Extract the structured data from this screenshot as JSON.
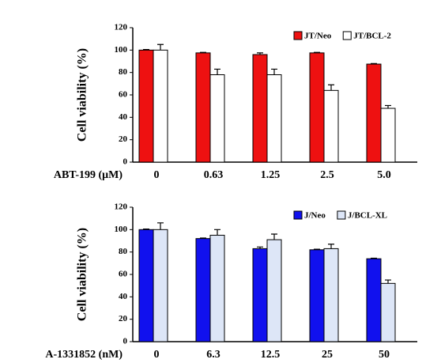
{
  "chart_data": [
    {
      "type": "bar",
      "ylabel": "Cell viability (%)",
      "xlabel": "ABT-199 (μM)",
      "categories": [
        "0",
        "0.63",
        "1.25",
        "2.5",
        "5.0"
      ],
      "series": [
        {
          "name": "JT/Neo",
          "color": "#ee1111",
          "values": [
            100,
            97.5,
            96,
            97.5,
            87.5
          ],
          "errors": [
            0.5,
            0.5,
            1.5,
            0.5,
            0.5
          ]
        },
        {
          "name": "JT/BCL-2",
          "color": "#ffffff",
          "values": [
            100,
            78,
            78,
            64,
            48
          ],
          "errors": [
            5,
            5,
            5,
            5,
            2.5
          ]
        }
      ],
      "ylim": [
        0,
        120
      ],
      "yticks": [
        0,
        20,
        40,
        60,
        80,
        100,
        120
      ],
      "legend": "upper right"
    },
    {
      "type": "bar",
      "ylabel": "Cell viability (%)",
      "xlabel": "A-1331852 (nM)",
      "categories": [
        "0",
        "6.3",
        "12.5",
        "25",
        "50"
      ],
      "series": [
        {
          "name": "J/Neo",
          "color": "#1111ee",
          "values": [
            100,
            92,
            83,
            82,
            74
          ],
          "errors": [
            0.5,
            0.5,
            1.5,
            0.5,
            0.5
          ]
        },
        {
          "name": "J/BCL-XL",
          "color": "#dde6f7",
          "values": [
            100,
            95,
            91,
            83,
            52
          ],
          "errors": [
            6,
            5,
            5,
            4,
            3
          ]
        }
      ],
      "ylim": [
        0,
        120
      ],
      "yticks": [
        0,
        20,
        40,
        60,
        80,
        100,
        120
      ],
      "legend": "upper right"
    }
  ]
}
